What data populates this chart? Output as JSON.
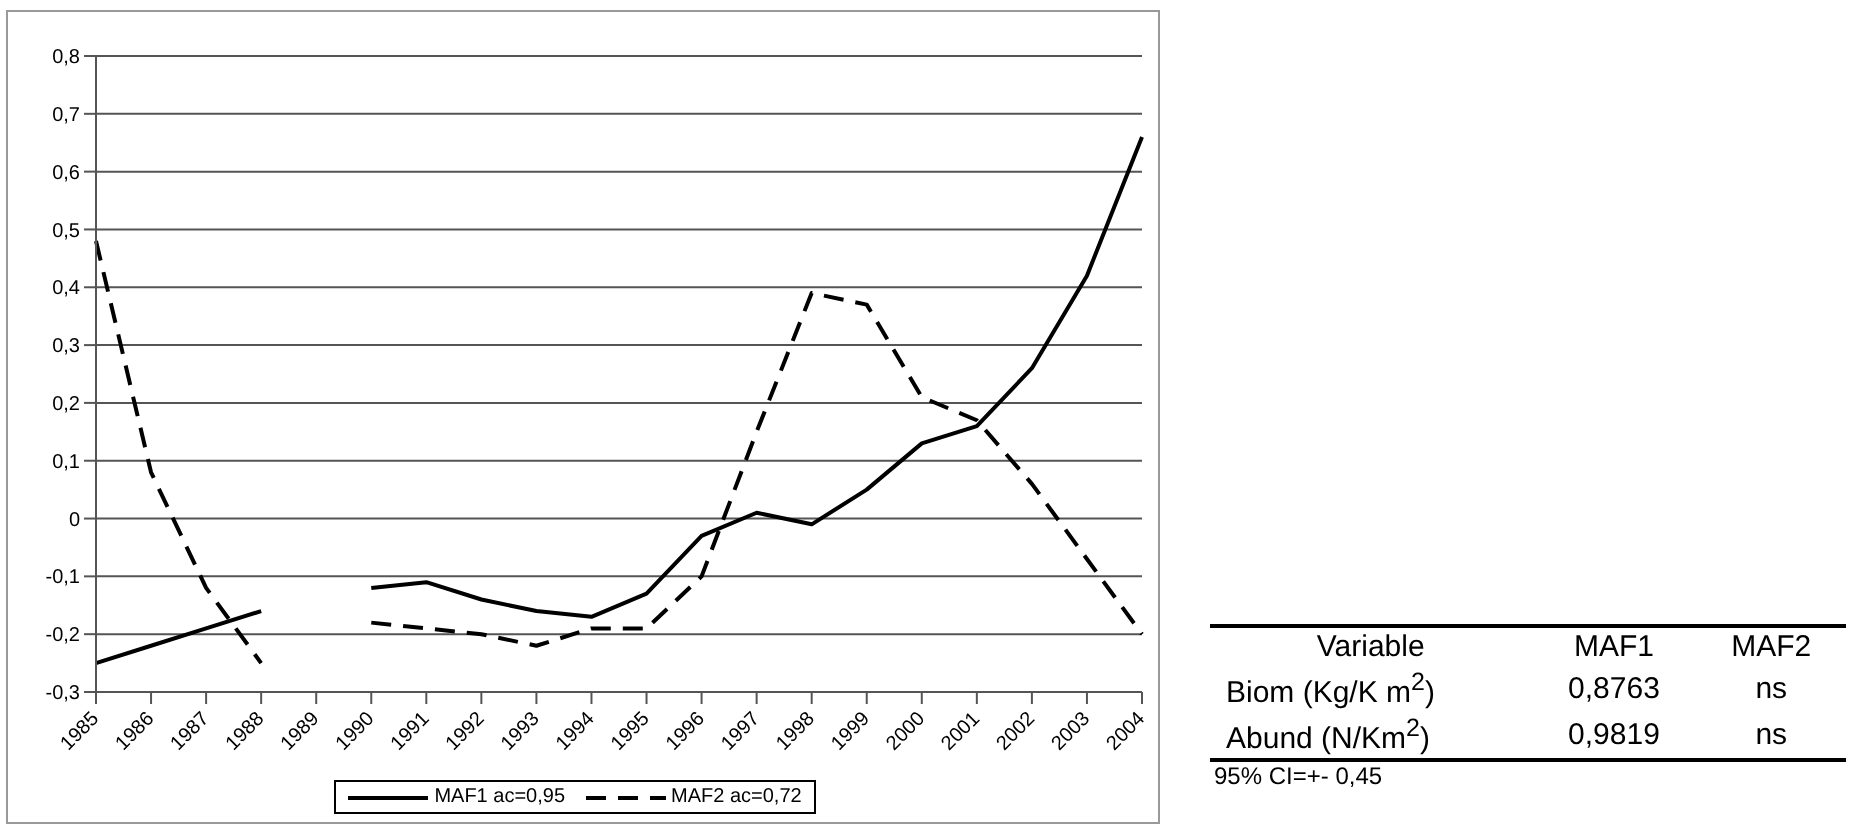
{
  "chart_data": [
    {
      "type": "line",
      "categories": [
        "1985",
        "1986",
        "1987",
        "1988",
        "1989",
        "1990",
        "1991",
        "1992",
        "1993",
        "1994",
        "1995",
        "1996",
        "1997",
        "1998",
        "1999",
        "2000",
        "2001",
        "2002",
        "2003",
        "2004"
      ],
      "series": [
        {
          "name": "MAF1 ac=0,95",
          "color": "#000000",
          "line_style": "solid",
          "values": [
            -0.25,
            -0.22,
            -0.19,
            -0.16,
            null,
            -0.12,
            -0.11,
            -0.14,
            -0.16,
            -0.17,
            -0.13,
            -0.03,
            0.01,
            -0.01,
            0.05,
            0.13,
            0.16,
            0.26,
            0.42,
            0.66
          ]
        },
        {
          "name": "MAF2 ac=0,72",
          "color": "#000000",
          "line_style": "dashed",
          "values": [
            0.48,
            0.08,
            -0.12,
            -0.25,
            null,
            -0.18,
            -0.19,
            -0.2,
            -0.22,
            -0.19,
            -0.19,
            -0.1,
            0.15,
            0.39,
            0.37,
            0.21,
            0.17,
            0.06,
            -0.07,
            -0.2
          ]
        }
      ],
      "ylim": [
        -0.3,
        0.8
      ],
      "yticks": [
        {
          "value": -0.3,
          "label": "-0,3"
        },
        {
          "value": -0.2,
          "label": "-0,2"
        },
        {
          "value": -0.1,
          "label": "-0,1"
        },
        0,
        {
          "value": 0.1,
          "label": "0,1"
        },
        {
          "value": 0.2,
          "label": "0,2"
        },
        {
          "value": 0.3,
          "label": "0,3"
        },
        {
          "value": 0.4,
          "label": "0,4"
        },
        {
          "value": 0.5,
          "label": "0,5"
        },
        {
          "value": 0.6,
          "label": "0,6"
        },
        {
          "value": 0.7,
          "label": "0,7"
        },
        {
          "value": 0.8,
          "label": "0,8"
        }
      ],
      "grid": "y",
      "legend": "bottom",
      "marker": "none"
    },
    {
      "type": "other",
      "categories": [
        "Variable",
        "MAF1",
        "MAF2"
      ],
      "y_categories": [
        "Biom (Kg/K m$^{2}$)",
        "Abund (N/Km$^{2}$)"
      ],
      "cell_labels": [
        [
          "0,8763",
          "ns"
        ],
        [
          "0,9819",
          "ns"
        ]
      ],
      "annotations": [
        "95% CI=+- 0,45"
      ]
    }
  ]
}
